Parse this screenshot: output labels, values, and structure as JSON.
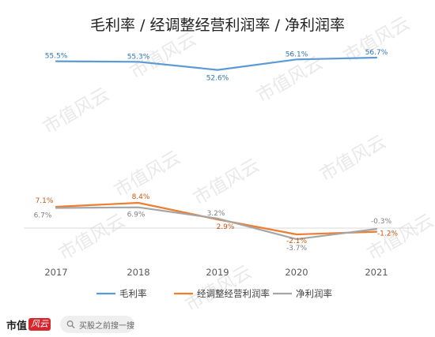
{
  "colors": {
    "gross": "#5b9bd5",
    "adjusted": "#ed7d31",
    "net": "#a5a5a5",
    "brand": "#d8262d"
  },
  "watermark": {
    "text": "市值风云"
  },
  "footer": {
    "brand_text": "市值",
    "brand_badge": "风云",
    "search_placeholder": "买股之前搜一搜",
    "search_icon": "search-icon"
  },
  "chart_data": {
    "type": "line",
    "title": "毛利率 / 经调整经营利润率 / 净利润率",
    "categories": [
      "2017",
      "2018",
      "2019",
      "2020",
      "2021"
    ],
    "series": [
      {
        "name": "毛利率",
        "values": [
          55.5,
          55.3,
          52.6,
          56.1,
          56.7
        ],
        "labels": [
          "55.5%",
          "55.3%",
          "52.6%",
          "56.1%",
          "56.7%"
        ],
        "color": "#5b9bd5"
      },
      {
        "name": "经调整经营利润率",
        "values": [
          7.1,
          8.4,
          2.9,
          -2.1,
          -1.2
        ],
        "labels": [
          "7.1%",
          "8.4%",
          "2.9%",
          "-2.1%",
          "-1.2%"
        ],
        "color": "#ed7d31"
      },
      {
        "name": "净利润率",
        "values": [
          6.7,
          6.9,
          3.2,
          -3.7,
          -0.3
        ],
        "labels": [
          "6.7%",
          "6.9%",
          "3.2%",
          "-3.7%",
          "-0.3%"
        ],
        "color": "#a5a5a5"
      }
    ],
    "legend_position": "bottom",
    "grid": false
  }
}
